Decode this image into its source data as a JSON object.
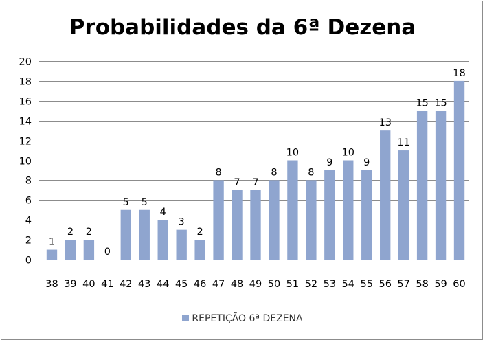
{
  "chart_data": {
    "type": "bar",
    "title": "Probabilidades da 6ª Dezena",
    "categories": [
      "38",
      "39",
      "40",
      "41",
      "42",
      "43",
      "44",
      "45",
      "46",
      "47",
      "48",
      "49",
      "50",
      "51",
      "52",
      "53",
      "54",
      "55",
      "56",
      "57",
      "58",
      "59",
      "60"
    ],
    "series": [
      {
        "name": "REPETIÇÃO 6ª DEZENA",
        "values": [
          1,
          2,
          2,
          0,
          5,
          5,
          4,
          3,
          2,
          8,
          7,
          7,
          8,
          10,
          8,
          9,
          10,
          9,
          13,
          11,
          15,
          15,
          18
        ],
        "color": "#8fa5cf"
      }
    ],
    "ylim": [
      0,
      20
    ],
    "yticks": [
      0,
      2,
      4,
      6,
      8,
      10,
      12,
      14,
      16,
      18,
      20
    ],
    "grid": true,
    "legend_position": "bottom",
    "data_labels": true
  }
}
